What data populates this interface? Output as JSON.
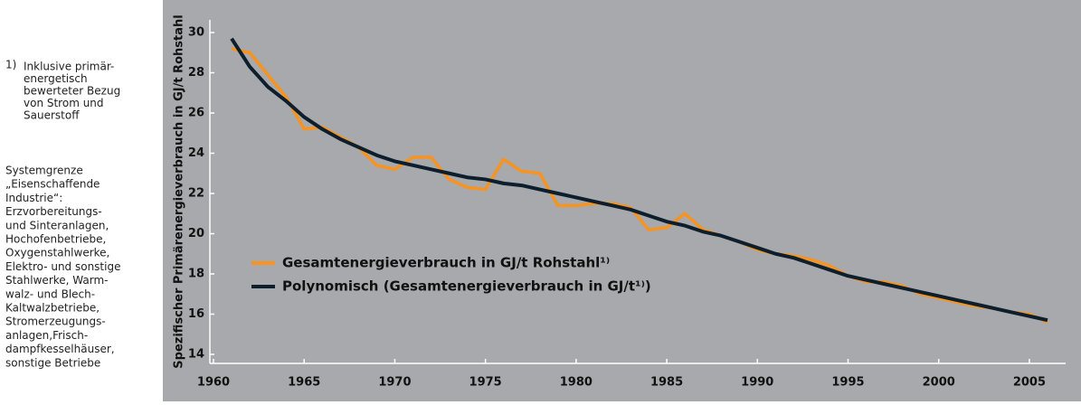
{
  "notes": {
    "footnote_marker": "1)",
    "footnote": [
      "Inklusive primär-",
      "energetisch",
      "bewerteter Bezug",
      "von Strom und",
      "Sauerstoff"
    ],
    "system_boundary": [
      "Systemgrenze",
      "„Eisenschaffende",
      "Industrie“:",
      "Erzvorbereitungs-",
      "und Sinteranlagen,",
      "Hochofenbetriebe,",
      "Oxygenstahlwerke,",
      "Elektro- und sonstige",
      "Stahlwerke, Warm-",
      "walz- und Blech-",
      "Kaltwalzbetriebe,",
      "Stromerzeugungs-",
      "anlagen,Frisch-",
      "dampfkesselhäuser,",
      "sonstige Betriebe"
    ]
  },
  "chart_data": {
    "type": "line",
    "ylabel": "Spezifischer Primärenergieverbrauch in GJ/t Rohstahl",
    "x": [
      1961,
      1962,
      1963,
      1964,
      1965,
      1966,
      1967,
      1968,
      1969,
      1970,
      1971,
      1972,
      1973,
      1974,
      1975,
      1976,
      1977,
      1978,
      1979,
      1980,
      1981,
      1982,
      1983,
      1984,
      1985,
      1986,
      1987,
      1988,
      1989,
      1990,
      1991,
      1992,
      1993,
      1994,
      1995,
      1996,
      1997,
      1998,
      1999,
      2000,
      2001,
      2002,
      2003,
      2004,
      2005,
      2006
    ],
    "series": [
      {
        "name": "Gesamtenergieverbrauch in GJ/t Rohstahl¹⁾",
        "color": "#f7931e",
        "values": [
          29.2,
          29.0,
          27.9,
          26.8,
          25.2,
          25.3,
          24.8,
          24.3,
          23.4,
          23.2,
          23.8,
          23.8,
          22.7,
          22.3,
          22.2,
          23.7,
          23.1,
          23.0,
          21.4,
          21.4,
          21.5,
          21.5,
          21.3,
          20.2,
          20.3,
          21.0,
          20.2,
          19.9,
          19.6,
          19.2,
          19.0,
          18.9,
          18.7,
          18.4,
          17.9,
          17.6,
          17.6,
          17.4,
          17.0,
          16.8,
          16.6,
          16.4,
          16.3,
          16.1,
          16.0,
          15.6
        ]
      },
      {
        "name": "Polynomisch (Gesamtenergieverbrauch in GJ/t¹⁾)",
        "color": "#0d1f2d",
        "values": [
          29.7,
          28.3,
          27.3,
          26.6,
          25.8,
          25.2,
          24.7,
          24.3,
          23.9,
          23.6,
          23.4,
          23.2,
          23.0,
          22.8,
          22.7,
          22.5,
          22.4,
          22.2,
          22.0,
          21.8,
          21.6,
          21.4,
          21.2,
          20.9,
          20.6,
          20.4,
          20.1,
          19.9,
          19.6,
          19.3,
          19.0,
          18.8,
          18.5,
          18.2,
          17.9,
          17.7,
          17.5,
          17.3,
          17.1,
          16.9,
          16.7,
          16.5,
          16.3,
          16.1,
          15.9,
          15.7
        ]
      }
    ],
    "xlim": [
      1959.8,
      2007
    ],
    "xticks": [
      1960,
      1965,
      1970,
      1975,
      1980,
      1985,
      1990,
      1995,
      2000,
      2005
    ],
    "ylim": [
      13.55,
      30.63
    ],
    "yticks": [
      14,
      16,
      18,
      20,
      22,
      24,
      26,
      28,
      30
    ],
    "grid": false,
    "legend": "lower left",
    "background": "#a7a9ac"
  }
}
